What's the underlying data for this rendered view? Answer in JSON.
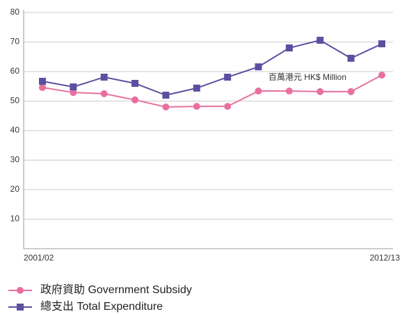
{
  "chart_data": {
    "type": "line",
    "categories": [
      "2001/02",
      null,
      null,
      null,
      null,
      null,
      null,
      null,
      null,
      null,
      null,
      "2012/13"
    ],
    "series": [
      {
        "name": "政府資助 Government Subsidy",
        "color": "#e8709f",
        "marker": "circle",
        "values": [
          54.6,
          52.9,
          52.5,
          50.4,
          48.0,
          48.2,
          48.2,
          53.4,
          53.4,
          53.2,
          53.2,
          58.8
        ]
      },
      {
        "name": "總支出 Total Expenditure",
        "color": "#5a4fa0",
        "marker": "square",
        "values": [
          56.7,
          54.8,
          58.1,
          56.0,
          52.0,
          54.4,
          58.1,
          61.6,
          68.0,
          70.6,
          64.5,
          69.4
        ]
      }
    ],
    "ylim": [
      0,
      80
    ],
    "yticks": [
      10,
      20,
      30,
      40,
      50,
      60,
      70,
      80
    ],
    "grid": true,
    "annotation": "百萬港元 HK$ Million"
  }
}
